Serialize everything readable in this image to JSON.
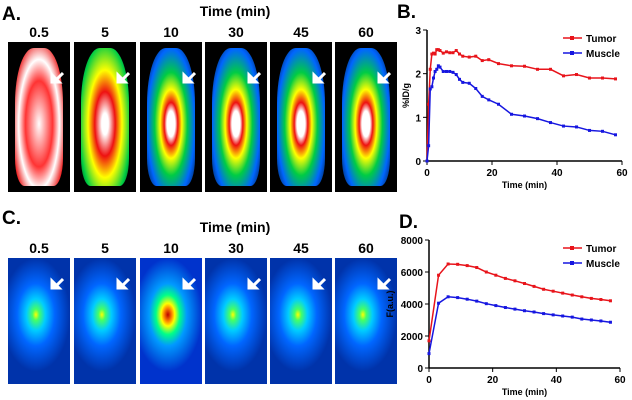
{
  "panel_a": {
    "label": "A.",
    "title": "Time (min)",
    "times": [
      "0.5",
      "5",
      "10",
      "30",
      "45",
      "60"
    ],
    "modality": "PET"
  },
  "panel_c": {
    "label": "C.",
    "title": "Time (min)",
    "times": [
      "0.5",
      "5",
      "10",
      "30",
      "45",
      "60"
    ],
    "modality": "optical"
  },
  "chart_data": [
    {
      "panel": "B.",
      "type": "line",
      "xlabel": "Time (min)",
      "ylabel": "%ID/g",
      "xlim": [
        0,
        60
      ],
      "ylim": [
        0,
        3
      ],
      "xticks": [
        "0",
        "20",
        "40",
        "60"
      ],
      "yticks": [
        "0",
        "1",
        "2",
        "3"
      ],
      "legend": "top-right",
      "grid": false,
      "series": [
        {
          "name": "Tumor",
          "color": "#e8141b",
          "x": [
            0,
            0.5,
            1,
            1.5,
            2,
            2.5,
            3,
            3.5,
            4,
            5,
            6,
            7,
            8,
            9,
            10,
            11,
            13,
            15,
            17,
            19,
            22,
            26,
            30,
            34,
            38,
            42,
            46,
            50,
            54,
            58
          ],
          "y": [
            0,
            1.3,
            2.1,
            2.45,
            2.47,
            2.45,
            2.55,
            2.55,
            2.53,
            2.47,
            2.5,
            2.48,
            2.48,
            2.53,
            2.45,
            2.4,
            2.38,
            2.4,
            2.3,
            2.32,
            2.23,
            2.18,
            2.17,
            2.1,
            2.1,
            1.95,
            1.98,
            1.9,
            1.9,
            1.88
          ]
        },
        {
          "name": "Muscle",
          "color": "#1616e0",
          "x": [
            0,
            0.5,
            1,
            1.5,
            2,
            2.5,
            3,
            3.5,
            4,
            5,
            6,
            7,
            8,
            9,
            10,
            11,
            13,
            15,
            17,
            19,
            22,
            26,
            30,
            34,
            38,
            42,
            46,
            50,
            54,
            58
          ],
          "y": [
            0,
            0.35,
            1.65,
            1.7,
            1.9,
            2.05,
            2.1,
            2.18,
            2.15,
            2.05,
            2.05,
            2.05,
            2.03,
            1.98,
            1.87,
            1.8,
            1.78,
            1.66,
            1.48,
            1.4,
            1.3,
            1.07,
            1.03,
            0.97,
            0.88,
            0.8,
            0.78,
            0.7,
            0.68,
            0.6
          ]
        }
      ]
    },
    {
      "panel": "D.",
      "type": "line",
      "xlabel": "Time (min)",
      "ylabel": "F(a.u.)",
      "xlim": [
        0,
        60
      ],
      "ylim": [
        0,
        8000
      ],
      "xticks": [
        "0",
        "20",
        "40",
        "60"
      ],
      "yticks": [
        "0",
        "2000",
        "4000",
        "6000",
        "8000"
      ],
      "legend": "top-right",
      "grid": false,
      "series": [
        {
          "name": "Tumor",
          "color": "#e8141b",
          "x": [
            0,
            3,
            6,
            9,
            12,
            15,
            18,
            21,
            24,
            27,
            30,
            33,
            36,
            39,
            42,
            45,
            48,
            51,
            54,
            57
          ],
          "y": [
            1700,
            5800,
            6500,
            6480,
            6400,
            6280,
            6000,
            5800,
            5600,
            5450,
            5280,
            5100,
            4920,
            4800,
            4680,
            4560,
            4450,
            4350,
            4280,
            4200
          ]
        },
        {
          "name": "Muscle",
          "color": "#1616e0",
          "x": [
            0,
            3,
            6,
            9,
            12,
            15,
            18,
            21,
            24,
            27,
            30,
            33,
            36,
            39,
            42,
            45,
            48,
            51,
            54,
            57
          ],
          "y": [
            900,
            4050,
            4450,
            4400,
            4300,
            4180,
            4020,
            3900,
            3780,
            3680,
            3580,
            3500,
            3400,
            3320,
            3250,
            3180,
            3060,
            3000,
            2940,
            2860
          ]
        }
      ]
    }
  ]
}
